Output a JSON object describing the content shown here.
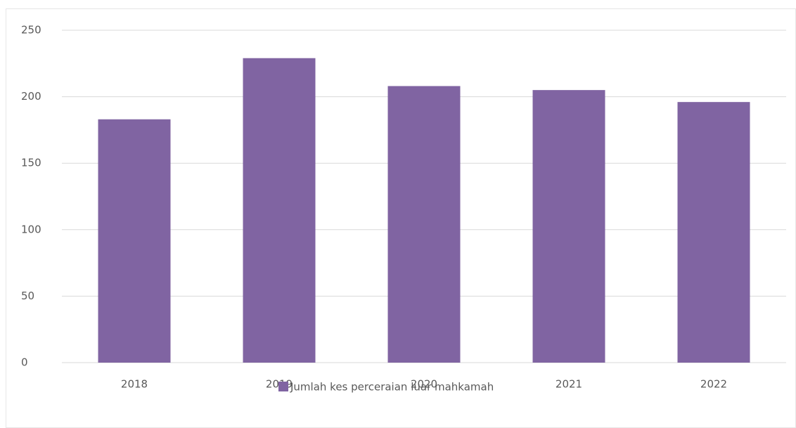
{
  "chart_data": {
    "type": "bar",
    "categories": [
      "2018",
      "2019",
      "2020",
      "2021",
      "2022"
    ],
    "series": [
      {
        "name": "Jumlah kes perceraian luar mahkamah",
        "color": "#8064a2",
        "values": [
          183,
          229,
          208,
          205,
          196
        ]
      }
    ],
    "ylim": [
      0,
      250
    ],
    "yticks": [
      0,
      50,
      100,
      150,
      200,
      250
    ],
    "grid": true,
    "legend": "bottom"
  }
}
